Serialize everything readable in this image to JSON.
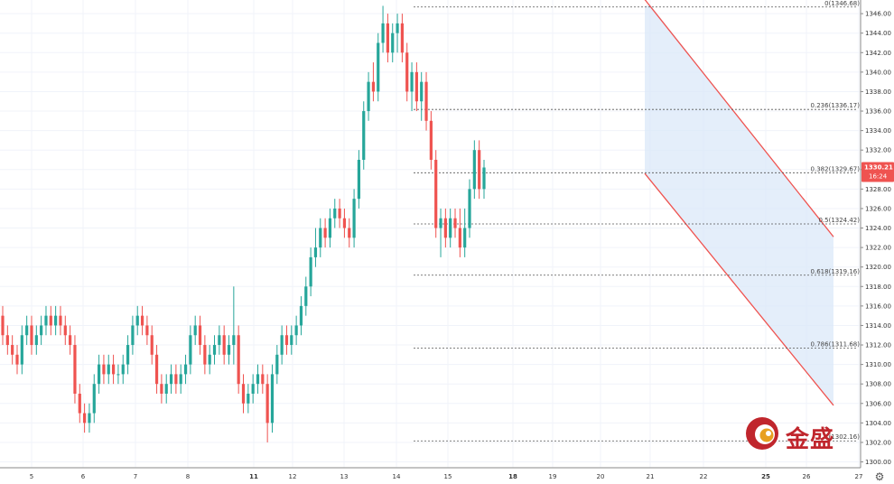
{
  "chart_data": {
    "type": "candlestick",
    "y_axis": {
      "ticks": [
        "1300.00",
        "1302.00",
        "1304.00",
        "1306.00",
        "1308.00",
        "1310.00",
        "1312.00",
        "1314.00",
        "1316.00",
        "1318.00",
        "1320.00",
        "1322.00",
        "1324.00",
        "1326.00",
        "1328.00",
        "1330.00",
        "1332.00",
        "1334.00",
        "1336.00",
        "1338.00",
        "1340.00",
        "1342.00",
        "1344.00",
        "1346.00"
      ],
      "range": [
        1299.4,
        1347.4
      ],
      "position": "right"
    },
    "x_axis": {
      "ticks": [
        "5",
        "6",
        "7",
        "8",
        "11",
        "12",
        "13",
        "14",
        "15",
        "18",
        "19",
        "20",
        "21",
        "22",
        "25",
        "26",
        "27"
      ],
      "bold_ticks": [
        "11",
        "18",
        "25"
      ]
    },
    "last_price": {
      "label": "1330.21",
      "value": 1330.21,
      "countdown": "16:24",
      "color": "#ef5350"
    },
    "fibonacci": {
      "label_color": "#444444",
      "levels": [
        {
          "label": "0(1346.68)",
          "value": 1346.68
        },
        {
          "label": "0.236(1336.17)",
          "value": 1336.17
        },
        {
          "label": "0.382(1329.67)",
          "value": 1329.67
        },
        {
          "label": "0.5(1324.42)",
          "value": 1324.42
        },
        {
          "label": "0.618(1319.16)",
          "value": 1319.16
        },
        {
          "label": "0.786(1311.68)",
          "value": 1311.68
        },
        {
          "label": "1(1302.16)",
          "value": 1302.16
        }
      ]
    },
    "channel": {
      "color": "#ef5350",
      "fill": "#dbe8f8",
      "upper": [
        [
          "21",
          1346.9
        ],
        [
          "27",
          1323.1
        ]
      ],
      "lower": [
        [
          "21",
          1329.6
        ],
        [
          "27",
          1305.8
        ]
      ]
    },
    "colors": {
      "up": "#26a69a",
      "down": "#ef5350"
    },
    "series": [
      {
        "name": "",
        "values": [
          [
            1315,
            1316,
            1312,
            1313
          ],
          [
            1313,
            1314,
            1311,
            1312
          ],
          [
            1312,
            1313,
            1310,
            1311
          ],
          [
            1311,
            1312,
            1309,
            1310
          ],
          [
            1310,
            1314,
            1309,
            1313
          ],
          [
            1313,
            1315,
            1312,
            1314
          ],
          [
            1314,
            1315,
            1311,
            1312
          ],
          [
            1312,
            1314,
            1311,
            1313
          ],
          [
            1313,
            1315,
            1312,
            1314
          ],
          [
            1314,
            1316,
            1313,
            1315
          ],
          [
            1315,
            1316,
            1313,
            1314
          ],
          [
            1314,
            1316,
            1313,
            1315
          ],
          [
            1315,
            1316,
            1313,
            1314
          ],
          [
            1314,
            1315,
            1312,
            1313
          ],
          [
            1313,
            1314,
            1311,
            1312
          ],
          [
            1312,
            1313,
            1306,
            1307
          ],
          [
            1307,
            1308,
            1304,
            1305
          ],
          [
            1305,
            1306,
            1303,
            1304
          ],
          [
            1304,
            1306,
            1303,
            1305
          ],
          [
            1305,
            1309,
            1304,
            1308
          ],
          [
            1308,
            1311,
            1307,
            1310
          ],
          [
            1310,
            1311,
            1308,
            1309
          ],
          [
            1309,
            1311,
            1308,
            1310
          ],
          [
            1310,
            1311,
            1308,
            1309
          ],
          [
            1309,
            1310,
            1308,
            1309
          ],
          [
            1309,
            1311,
            1308,
            1310
          ],
          [
            1310,
            1313,
            1309,
            1312
          ],
          [
            1312,
            1315,
            1311,
            1314
          ],
          [
            1314,
            1316,
            1313,
            1315
          ],
          [
            1315,
            1316,
            1313,
            1314
          ],
          [
            1314,
            1315,
            1312,
            1313
          ],
          [
            1313,
            1314,
            1310,
            1311
          ],
          [
            1311,
            1312,
            1307,
            1308
          ],
          [
            1308,
            1309,
            1306,
            1307
          ],
          [
            1307,
            1309,
            1306,
            1308
          ],
          [
            1308,
            1310,
            1307,
            1309
          ],
          [
            1309,
            1310,
            1307,
            1308
          ],
          [
            1308,
            1310,
            1307,
            1309
          ],
          [
            1309,
            1311,
            1308,
            1310
          ],
          [
            1310,
            1314,
            1309,
            1313
          ],
          [
            1313,
            1315,
            1312,
            1314
          ],
          [
            1314,
            1315,
            1311,
            1312
          ],
          [
            1312,
            1313,
            1309,
            1310
          ],
          [
            1310,
            1312,
            1309,
            1311
          ],
          [
            1311,
            1313,
            1310,
            1312
          ],
          [
            1312,
            1314,
            1311,
            1313
          ],
          [
            1313,
            1314,
            1310,
            1311
          ],
          [
            1311,
            1313,
            1310,
            1312
          ],
          [
            1312,
            1318,
            1310,
            1313
          ],
          [
            1313,
            1314,
            1307,
            1308
          ],
          [
            1308,
            1309,
            1305,
            1306
          ],
          [
            1306,
            1308,
            1305,
            1307
          ],
          [
            1307,
            1309,
            1306,
            1308
          ],
          [
            1308,
            1310,
            1307,
            1309
          ],
          [
            1309,
            1310,
            1307,
            1308
          ],
          [
            1308,
            1309,
            1302,
            1304
          ],
          [
            1304,
            1310,
            1303,
            1309
          ],
          [
            1309,
            1312,
            1308,
            1311
          ],
          [
            1311,
            1314,
            1310,
            1313
          ],
          [
            1313,
            1314,
            1311,
            1312
          ],
          [
            1312,
            1314,
            1311,
            1313
          ],
          [
            1313,
            1315,
            1312,
            1314
          ],
          [
            1314,
            1317,
            1313,
            1316
          ],
          [
            1316,
            1319,
            1315,
            1318
          ],
          [
            1318,
            1322,
            1317,
            1321
          ],
          [
            1321,
            1324,
            1320,
            1322
          ],
          [
            1322,
            1325,
            1321,
            1324
          ],
          [
            1324,
            1325,
            1322,
            1323
          ],
          [
            1323,
            1326,
            1322,
            1325
          ],
          [
            1325,
            1327,
            1324,
            1326
          ],
          [
            1326,
            1327,
            1324,
            1325
          ],
          [
            1325,
            1326,
            1323,
            1324
          ],
          [
            1324,
            1325,
            1322,
            1323
          ],
          [
            1323,
            1328,
            1322,
            1327
          ],
          [
            1327,
            1332,
            1326,
            1331
          ],
          [
            1331,
            1337,
            1330,
            1336
          ],
          [
            1336,
            1340,
            1335,
            1339
          ],
          [
            1339,
            1341,
            1337,
            1338
          ],
          [
            1338,
            1344,
            1337,
            1343
          ],
          [
            1343,
            1346.8,
            1342,
            1345
          ],
          [
            1345,
            1346,
            1341,
            1342
          ],
          [
            1342,
            1345,
            1341,
            1344
          ],
          [
            1344,
            1346,
            1342,
            1345
          ],
          [
            1345,
            1346,
            1341,
            1342
          ],
          [
            1342,
            1343,
            1337,
            1338
          ],
          [
            1338,
            1341,
            1336,
            1340
          ],
          [
            1340,
            1341,
            1336,
            1337
          ],
          [
            1337,
            1340,
            1335,
            1339
          ],
          [
            1339,
            1340,
            1334,
            1335
          ],
          [
            1335,
            1336,
            1330,
            1331
          ],
          [
            1331,
            1332,
            1323,
            1324
          ],
          [
            1324,
            1326,
            1321,
            1325
          ],
          [
            1325,
            1326,
            1322,
            1323
          ],
          [
            1323,
            1326,
            1322,
            1325
          ],
          [
            1325,
            1326,
            1323,
            1324
          ],
          [
            1324,
            1326,
            1321,
            1322
          ],
          [
            1322,
            1326,
            1321,
            1324
          ],
          [
            1324,
            1329,
            1323,
            1328
          ],
          [
            1328,
            1333,
            1327,
            1332
          ],
          [
            1332,
            1333,
            1327,
            1328
          ],
          [
            1328,
            1331,
            1327,
            1330.21
          ]
        ]
      }
    ]
  },
  "watermark": {
    "text": "金盛"
  },
  "settings": {
    "icon": "gear-icon",
    "glyph": "⚙"
  }
}
